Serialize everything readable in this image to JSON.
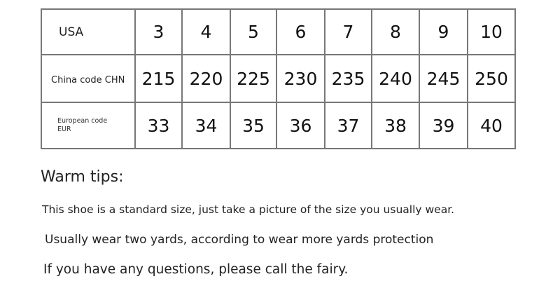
{
  "table": {
    "rows": [
      {
        "label": "USA",
        "values": [
          "3",
          "4",
          "5",
          "6",
          "7",
          "8",
          "9",
          "10"
        ]
      },
      {
        "label": "China code CHN",
        "values": [
          "215",
          "220",
          "225",
          "230",
          "235",
          "240",
          "245",
          "250"
        ]
      },
      {
        "label_line1": "European code",
        "label_line2": "EUR",
        "values": [
          "33",
          "34",
          "35",
          "36",
          "37",
          "38",
          "39",
          "40"
        ]
      }
    ]
  },
  "tips": {
    "title": "Warm tips:",
    "lines": [
      "This shoe is a standard size, just take a picture of the size you usually wear.",
      "Usually wear two yards, according to wear more yards protection",
      "If you have any questions, please call the fairy."
    ]
  }
}
